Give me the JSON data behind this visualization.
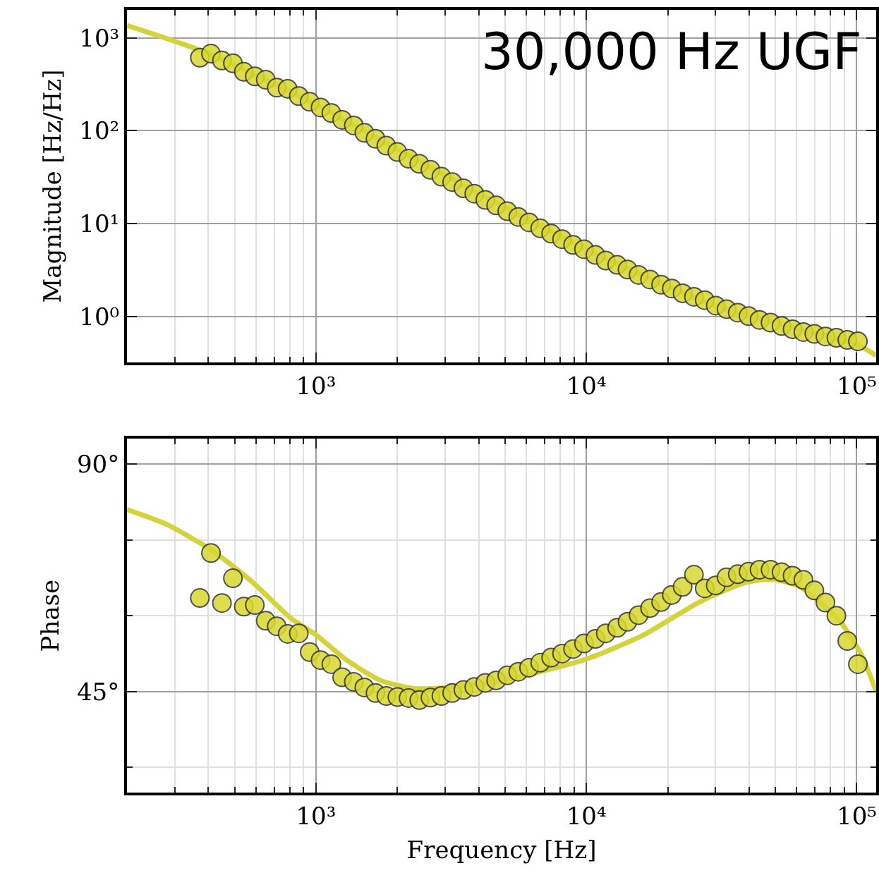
{
  "chart_data": [
    {
      "type": "scatter",
      "ylabel": "Magnitude [Hz/Hz]",
      "log": "xy",
      "grid": true,
      "xlim": [
        200,
        118000
      ],
      "ylim": [
        0.32,
        2000
      ],
      "xticks": [
        {
          "value": 200,
          "label": null
        },
        {
          "value": 300,
          "label": null
        },
        {
          "value": 400,
          "label": null
        },
        {
          "value": 500,
          "label": null
        },
        {
          "value": 600,
          "label": null
        },
        {
          "value": 700,
          "label": null
        },
        {
          "value": 800,
          "label": null
        },
        {
          "value": 900,
          "label": null
        },
        {
          "value": 1000,
          "label": "10³"
        },
        {
          "value": 2000,
          "label": null
        },
        {
          "value": 3000,
          "label": null
        },
        {
          "value": 4000,
          "label": null
        },
        {
          "value": 5000,
          "label": null
        },
        {
          "value": 6000,
          "label": null
        },
        {
          "value": 7000,
          "label": null
        },
        {
          "value": 8000,
          "label": null
        },
        {
          "value": 9000,
          "label": null
        },
        {
          "value": 10000,
          "label": "10⁴"
        },
        {
          "value": 20000,
          "label": null
        },
        {
          "value": 30000,
          "label": null
        },
        {
          "value": 40000,
          "label": null
        },
        {
          "value": 50000,
          "label": null
        },
        {
          "value": 60000,
          "label": null
        },
        {
          "value": 70000,
          "label": null
        },
        {
          "value": 80000,
          "label": null
        },
        {
          "value": 90000,
          "label": null
        },
        {
          "value": 100000,
          "label": "10⁵"
        }
      ],
      "yticks": [
        {
          "value": 1,
          "label": "10⁰"
        },
        {
          "value": 10,
          "label": "10¹"
        },
        {
          "value": 100,
          "label": "10²"
        },
        {
          "value": 1000,
          "label": "10³"
        }
      ],
      "annotations": [
        "30,000 Hz UGF"
      ],
      "series": [
        {
          "type": "line",
          "color": "#d4d43a",
          "line_style": "solid",
          "x": [
            200,
            400,
            1000,
            3000,
            10000,
            30000,
            100000,
            118000
          ],
          "values": [
            1360,
            680,
            190,
            33,
            5.3,
            1.3,
            0.5,
            0.38
          ]
        },
        {
          "color": "#d8d830",
          "marker": "circle",
          "x": [
            372,
            409,
            449,
            493,
            541,
            594,
            652,
            716,
            786,
            864,
            948,
            1040,
            1140,
            1250,
            1380,
            1510,
            1660,
            1820,
            2000,
            2200,
            2410,
            2650,
            2910,
            3190,
            3510,
            3850,
            4230,
            4640,
            5100,
            5600,
            6140,
            6750,
            7410,
            8130,
            8930,
            9800,
            10800,
            11800,
            13000,
            14200,
            15600,
            17200,
            18900,
            20700,
            22700,
            25000,
            27400,
            30100,
            33000,
            36300,
            39800,
            43700,
            48000,
            52700,
            57900,
            63500,
            69700,
            76600,
            84100,
            92300,
            101000
          ],
          "values": [
            612,
            676,
            570,
            532,
            431,
            385,
            354,
            291,
            283,
            236,
            205,
            178,
            155,
            131,
            114,
            95,
            82,
            69,
            59,
            50,
            44,
            38,
            32,
            28,
            24,
            21,
            18,
            15.7,
            13.6,
            11.8,
            10.3,
            8.9,
            7.8,
            6.8,
            5.9,
            5.3,
            4.6,
            4.0,
            3.6,
            3.2,
            2.8,
            2.5,
            2.2,
            2.0,
            1.78,
            1.63,
            1.5,
            1.31,
            1.2,
            1.1,
            1.01,
            0.92,
            0.86,
            0.79,
            0.73,
            0.68,
            0.65,
            0.61,
            0.59,
            0.56,
            0.54
          ]
        }
      ]
    },
    {
      "type": "scatter",
      "xlabel": "Frequency [Hz]",
      "ylabel": "Phase",
      "log": "x",
      "grid": true,
      "xlim": [
        200,
        118000
      ],
      "ylim": [
        25,
        95
      ],
      "xticks": [
        {
          "value": 200,
          "label": null
        },
        {
          "value": 300,
          "label": null
        },
        {
          "value": 400,
          "label": null
        },
        {
          "value": 500,
          "label": null
        },
        {
          "value": 600,
          "label": null
        },
        {
          "value": 700,
          "label": null
        },
        {
          "value": 800,
          "label": null
        },
        {
          "value": 900,
          "label": null
        },
        {
          "value": 1000,
          "label": "10³"
        },
        {
          "value": 2000,
          "label": null
        },
        {
          "value": 3000,
          "label": null
        },
        {
          "value": 4000,
          "label": null
        },
        {
          "value": 5000,
          "label": null
        },
        {
          "value": 6000,
          "label": null
        },
        {
          "value": 7000,
          "label": null
        },
        {
          "value": 8000,
          "label": null
        },
        {
          "value": 9000,
          "label": null
        },
        {
          "value": 10000,
          "label": "10⁴"
        },
        {
          "value": 20000,
          "label": null
        },
        {
          "value": 30000,
          "label": null
        },
        {
          "value": 40000,
          "label": null
        },
        {
          "value": 50000,
          "label": null
        },
        {
          "value": 60000,
          "label": null
        },
        {
          "value": 70000,
          "label": null
        },
        {
          "value": 80000,
          "label": null
        },
        {
          "value": 90000,
          "label": null
        },
        {
          "value": 100000,
          "label": "10⁵"
        }
      ],
      "yticks": [
        {
          "value": 30,
          "label": null
        },
        {
          "value": 45,
          "label": "45°"
        },
        {
          "value": 60,
          "label": null
        },
        {
          "value": 75,
          "label": null
        },
        {
          "value": 90,
          "label": "90°"
        }
      ],
      "series": [
        {
          "type": "line",
          "color": "#d4d43a",
          "line_style": "solid",
          "x": [
            200,
            282,
            410,
            578,
            807,
            1000,
            1300,
            1730,
            2300,
            3070,
            4940,
            10000,
            16300,
            26200,
            38400,
            48700,
            61800,
            86300,
            104000,
            118000
          ],
          "values": [
            81.0,
            78.0,
            73.0,
            66.8,
            59.5,
            56.2,
            51.2,
            47.2,
            45.6,
            45.8,
            47.2,
            51.4,
            56.2,
            62.7,
            66.5,
            67.2,
            65.7,
            59.0,
            52.3,
            45.0
          ]
        },
        {
          "color": "#d8d830",
          "marker": "circle",
          "x": [
            372,
            409,
            449,
            493,
            541,
            594,
            652,
            716,
            786,
            864,
            948,
            1040,
            1140,
            1250,
            1380,
            1510,
            1660,
            1820,
            2000,
            2200,
            2410,
            2650,
            2910,
            3190,
            3510,
            3850,
            4230,
            4640,
            5100,
            5600,
            6140,
            6750,
            7410,
            8130,
            8930,
            9800,
            10800,
            11800,
            13000,
            14200,
            15600,
            17200,
            18900,
            20700,
            22700,
            25000,
            27400,
            30100,
            33000,
            36300,
            39800,
            43700,
            48000,
            52700,
            57900,
            63500,
            69700,
            76600,
            84100,
            92300,
            101000
          ],
          "values": [
            63.5,
            72.4,
            62.5,
            67.4,
            61.8,
            62.1,
            59.0,
            57.9,
            56.4,
            56.5,
            52.8,
            51.2,
            50.4,
            47.8,
            46.9,
            45.8,
            44.7,
            44.1,
            43.9,
            43.7,
            43.3,
            43.8,
            44.1,
            44.7,
            45.3,
            45.9,
            46.7,
            47.2,
            48.2,
            48.9,
            49.7,
            50.7,
            51.7,
            52.5,
            53.4,
            54.5,
            55.4,
            56.5,
            57.6,
            58.8,
            60.1,
            61.5,
            62.7,
            64.1,
            65.7,
            68.1,
            65.4,
            66.0,
            67.6,
            68.2,
            68.7,
            69.1,
            69.1,
            68.6,
            67.9,
            67.1,
            65.0,
            62.6,
            60.0,
            55.0,
            50.4
          ]
        }
      ]
    }
  ]
}
